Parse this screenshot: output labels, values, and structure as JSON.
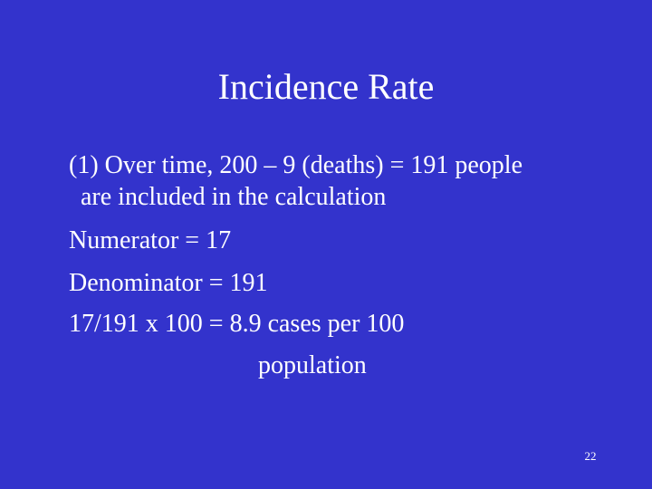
{
  "slide": {
    "title": "Incidence Rate",
    "lines": [
      "(1)  Over time, 200 – 9 (deaths) = 191 people",
      "are included in the calculation",
      "Numerator = 17",
      "Denominator = 191",
      "17/191 x 100 =  8.9 cases per 100",
      "population"
    ],
    "page_number": "22"
  },
  "colors": {
    "background": "#3333cc",
    "text": "#ffffff"
  }
}
